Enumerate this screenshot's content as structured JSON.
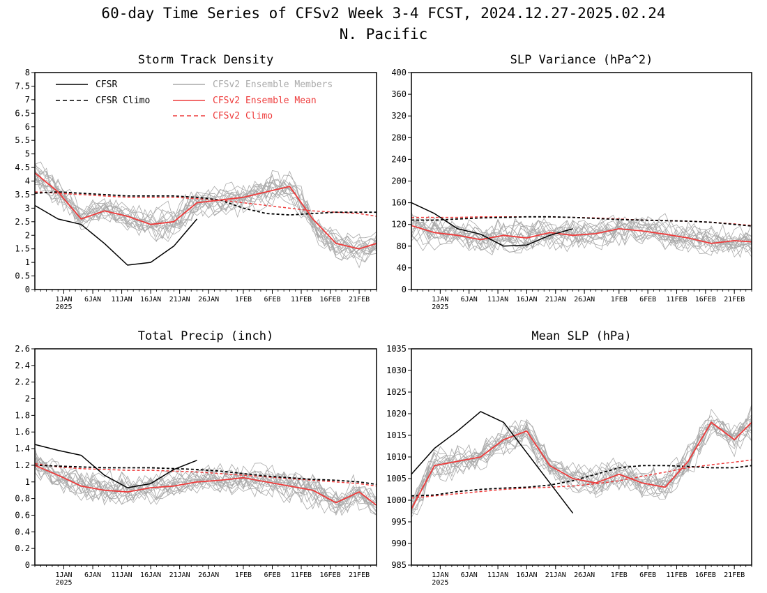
{
  "figure": {
    "title_line1": "60-day Time Series of CFSv2 Week 3-4 FCST, 2024.12.27-2025.02.24",
    "title_line2": "N. Pacific"
  },
  "colors": {
    "members": "#a9a9a9",
    "ensemble_mean": "#ee3b3b",
    "cfsr": "#000000",
    "cfsr_climo": "#000000",
    "cfsv2_climo": "#ee3b3b"
  },
  "legend": {
    "cfsr": "CFSR",
    "cfsr_climo": "CFSR Climo",
    "members": "CFSv2 Ensemble Members",
    "ensemble_mean": "CFSv2 Ensemble Mean",
    "cfsv2_climo": "CFSv2 Climo",
    "placement": "top inside first panel"
  },
  "x_axis": {
    "start": "2024-12-27",
    "end": "2025-02-24",
    "tick_labels": [
      "1JAN",
      "6JAN",
      "11JAN",
      "16JAN",
      "21JAN",
      "26JAN",
      "1FEB",
      "6FEB",
      "11FEB",
      "16FEB",
      "21FEB"
    ],
    "tick_dates": [
      "2025-01-01",
      "2025-01-06",
      "2025-01-11",
      "2025-01-16",
      "2025-01-21",
      "2025-01-26",
      "2025-02-01",
      "2025-02-06",
      "2025-02-11",
      "2025-02-16",
      "2025-02-21"
    ],
    "year_label": "2025"
  },
  "chart_data": [
    {
      "type": "line",
      "title": "Storm Track Density",
      "ylim": [
        0,
        8
      ],
      "y_ticks": [
        "0",
        "0.5",
        "1",
        "1.5",
        "2",
        "2.5",
        "3",
        "3.5",
        "4",
        "4.5",
        "5",
        "5.5",
        "6",
        "6.5",
        "7",
        "7.5",
        "8"
      ],
      "grid": false,
      "x": [
        "2024-12-27",
        "2024-12-31",
        "2025-01-04",
        "2025-01-08",
        "2025-01-12",
        "2025-01-16",
        "2025-01-20",
        "2025-01-24",
        "2025-01-28",
        "2025-02-01",
        "2025-02-05",
        "2025-02-09",
        "2025-02-13",
        "2025-02-17",
        "2025-02-21",
        "2025-02-24"
      ],
      "series": [
        {
          "name": "CFSR",
          "values": [
            3.1,
            2.6,
            2.4,
            1.7,
            0.9,
            1.0,
            1.6,
            2.6,
            null,
            null,
            null,
            null,
            null,
            null,
            null,
            null
          ]
        },
        {
          "name": "CFSR Climo",
          "values": [
            3.55,
            3.6,
            3.55,
            3.5,
            3.45,
            3.45,
            3.45,
            3.4,
            3.3,
            3.0,
            2.8,
            2.75,
            2.8,
            2.85,
            2.85,
            2.85
          ]
        },
        {
          "name": "CFSv2 Ensemble Mean",
          "values": [
            4.3,
            3.6,
            2.6,
            2.9,
            2.7,
            2.4,
            2.5,
            3.2,
            3.3,
            3.4,
            3.6,
            3.8,
            2.6,
            1.7,
            1.5,
            1.7
          ]
        },
        {
          "name": "CFSv2 Climo",
          "values": [
            3.6,
            3.55,
            3.5,
            3.45,
            3.4,
            3.4,
            3.4,
            3.35,
            3.3,
            3.2,
            3.1,
            3.0,
            2.9,
            2.85,
            2.8,
            2.7
          ]
        }
      ]
    },
    {
      "type": "line",
      "title": "SLP Variance (hPa^2)",
      "ylim": [
        0,
        400
      ],
      "y_ticks": [
        "0",
        "40",
        "80",
        "120",
        "160",
        "200",
        "240",
        "280",
        "320",
        "360",
        "400"
      ],
      "grid": false,
      "x": [
        "2024-12-27",
        "2024-12-31",
        "2025-01-04",
        "2025-01-08",
        "2025-01-12",
        "2025-01-16",
        "2025-01-20",
        "2025-01-24",
        "2025-01-28",
        "2025-02-01",
        "2025-02-05",
        "2025-02-09",
        "2025-02-13",
        "2025-02-17",
        "2025-02-21",
        "2025-02-24"
      ],
      "series": [
        {
          "name": "CFSR",
          "values": [
            160,
            140,
            112,
            102,
            80,
            82,
            100,
            112,
            null,
            null,
            null,
            null,
            null,
            null,
            null,
            null
          ]
        },
        {
          "name": "CFSR Climo",
          "values": [
            128,
            128,
            130,
            132,
            133,
            134,
            134,
            133,
            131,
            129,
            128,
            127,
            126,
            124,
            120,
            117
          ]
        },
        {
          "name": "CFSv2 Ensemble Mean",
          "values": [
            118,
            105,
            100,
            92,
            100,
            95,
            105,
            100,
            103,
            112,
            108,
            102,
            95,
            85,
            90,
            88
          ]
        },
        {
          "name": "CFSv2 Climo",
          "values": [
            133,
            133,
            133,
            134,
            134,
            134,
            134,
            133,
            132,
            130,
            128,
            127,
            126,
            124,
            121,
            118
          ]
        }
      ]
    },
    {
      "type": "line",
      "title": "Total Precip (inch)",
      "ylim": [
        0,
        2.6
      ],
      "y_ticks": [
        "0",
        "0.2",
        "0.4",
        "0.6",
        "0.8",
        "1",
        "1.2",
        "1.4",
        "1.6",
        "1.8",
        "2",
        "2.2",
        "2.4",
        "2.6"
      ],
      "grid": false,
      "x": [
        "2024-12-27",
        "2024-12-31",
        "2025-01-04",
        "2025-01-08",
        "2025-01-12",
        "2025-01-16",
        "2025-01-20",
        "2025-01-24",
        "2025-01-28",
        "2025-02-01",
        "2025-02-05",
        "2025-02-09",
        "2025-02-13",
        "2025-02-17",
        "2025-02-21",
        "2025-02-24"
      ],
      "series": [
        {
          "name": "CFSR",
          "values": [
            1.45,
            1.38,
            1.32,
            1.08,
            0.93,
            0.98,
            1.15,
            1.26,
            null,
            null,
            null,
            null,
            null,
            null,
            null,
            null
          ]
        },
        {
          "name": "CFSR Climo",
          "values": [
            1.2,
            1.19,
            1.18,
            1.17,
            1.17,
            1.17,
            1.16,
            1.15,
            1.13,
            1.1,
            1.07,
            1.05,
            1.03,
            1.02,
            1.0,
            0.97
          ]
        },
        {
          "name": "CFSv2 Ensemble Mean",
          "values": [
            1.2,
            1.08,
            0.95,
            0.9,
            0.88,
            0.93,
            0.95,
            1.0,
            1.02,
            1.05,
            1.0,
            0.95,
            0.9,
            0.75,
            0.88,
            0.72
          ]
        },
        {
          "name": "CFSv2 Climo",
          "values": [
            1.22,
            1.18,
            1.16,
            1.15,
            1.14,
            1.14,
            1.13,
            1.12,
            1.1,
            1.08,
            1.06,
            1.04,
            1.02,
            1.0,
            0.98,
            0.95
          ]
        }
      ]
    },
    {
      "type": "line",
      "title": "Mean SLP (hPa)",
      "ylim": [
        985,
        1035
      ],
      "y_ticks": [
        "985",
        "990",
        "995",
        "1000",
        "1005",
        "1010",
        "1015",
        "1020",
        "1025",
        "1030",
        "1035"
      ],
      "grid": false,
      "x": [
        "2024-12-27",
        "2024-12-31",
        "2025-01-04",
        "2025-01-08",
        "2025-01-12",
        "2025-01-16",
        "2025-01-20",
        "2025-01-24",
        "2025-01-28",
        "2025-02-01",
        "2025-02-05",
        "2025-02-09",
        "2025-02-13",
        "2025-02-17",
        "2025-02-21",
        "2025-02-24"
      ],
      "series": [
        {
          "name": "CFSR",
          "values": [
            1006,
            1012,
            1016,
            1020.5,
            1018,
            1011,
            1004,
            997,
            null,
            null,
            null,
            null,
            null,
            null,
            null,
            null
          ]
        },
        {
          "name": "CFSR Climo",
          "values": [
            1001,
            1001.2,
            1002,
            1002.5,
            1002.8,
            1003,
            1003.5,
            1004.5,
            1006,
            1007.5,
            1008,
            1008,
            1007.8,
            1007.5,
            1007.5,
            1008
          ]
        },
        {
          "name": "CFSv2 Ensemble Mean",
          "values": [
            998,
            1008,
            1009,
            1010,
            1014,
            1016,
            1008,
            1005,
            1004,
            1006,
            1004,
            1003,
            1009,
            1018,
            1014,
            1018
          ]
        },
        {
          "name": "CFSv2 Climo",
          "values": [
            1000.5,
            1001,
            1001.5,
            1002,
            1002.5,
            1002.8,
            1003,
            1003.3,
            1003.8,
            1004.5,
            1005.5,
            1006.5,
            1007.5,
            1008.2,
            1008.8,
            1009.3
          ]
        }
      ]
    }
  ]
}
